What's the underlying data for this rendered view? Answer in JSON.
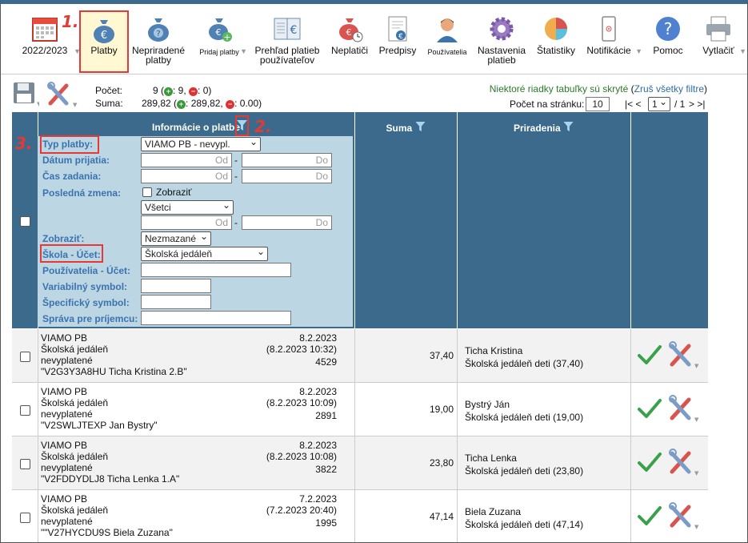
{
  "toolbar": {
    "year": "2022/2023",
    "items": [
      {
        "label": "Platby",
        "icon": "money-bag-euro-icon"
      },
      {
        "label": "Nepriradené platby",
        "icon": "money-bag-question-icon"
      },
      {
        "label": "Pridaj platby",
        "icon": "money-bag-add-icon"
      },
      {
        "label": "Prehľad platieb používateľov",
        "icon": "ledger-book-icon"
      },
      {
        "label": "Neplatiči",
        "icon": "money-bag-clock-icon"
      },
      {
        "label": "Predpisy",
        "icon": "document-euro-icon"
      },
      {
        "label": "Používatelia",
        "icon": "user-icon"
      },
      {
        "label": "Nastavenia platieb",
        "icon": "gear-icon"
      },
      {
        "label": "Štatistiky",
        "icon": "pie-chart-icon"
      },
      {
        "label": "Notifikácie",
        "icon": "phone-icon"
      },
      {
        "label": "Pomoc",
        "icon": "help-icon"
      },
      {
        "label": "Vytlačiť",
        "icon": "printer-icon"
      }
    ]
  },
  "annotations": [
    "1.",
    "2.",
    "3."
  ],
  "summary": {
    "count_label": "Počet:",
    "count_value": "9 (",
    "count_plus": ": 9,",
    "count_minus": ": 0)",
    "sum_label": "Suma:",
    "sum_value": "289,82 (",
    "sum_plus": ": 289,82,",
    "sum_minus": ": 0.00)"
  },
  "notice": {
    "text": "Niektoré riadky tabuľky sú skryté",
    "link": "Zruš všetky filtre"
  },
  "pagination": {
    "per_page_label": "Počet na stránku:",
    "per_page": "10",
    "first_prev": "|< <",
    "page": "1",
    "of": "/ 1",
    "next_last": "> >|"
  },
  "headers": {
    "info": "Informácie o platbe",
    "sum": "Suma",
    "assign": "Priradenia"
  },
  "filter": {
    "typ_platby_label": "Typ platby:",
    "typ_platby_value": "VIAMO PB - nevypl.",
    "datum_prijatia_label": "Dátum prijatia:",
    "cas_zadania_label": "Čas zadania:",
    "posledna_zmena_label": "Posledná zmena:",
    "zobrazit_checkbox_label": "Zobraziť",
    "vsetci_value": "Všetci",
    "zobrazit_label": "Zobraziť:",
    "zobrazit_value": "Nezmazané",
    "skola_ucet_label": "Škola - Účet:",
    "skola_ucet_value": "Školská jedáleň",
    "pouzivatelia_label": "Používatelia - Účet:",
    "variabilny_label": "Variabilný symbol:",
    "specificky_label": "Špecifický symbol:",
    "sprava_label": "Správa pre príjemcu:",
    "od_placeholder": "Od",
    "do_placeholder": "Do",
    "dash": "-"
  },
  "rows": [
    {
      "type": "VIAMO PB",
      "account": "Školská jedáleň",
      "status": "nevyplatené",
      "message": "\"V2G3Y3A8HU  Ticha Kristina  2.B\"",
      "date": "8.2.2023",
      "datetime": "(8.2.2023 10:32)",
      "vs": "4529",
      "sum": "37,40",
      "name": "Ticha Kristina",
      "assign": "Školská jedáleň deti (37,40)"
    },
    {
      "type": "VIAMO PB",
      "account": "Školská jedáleň",
      "status": "nevyplatené",
      "message": "\"V2SWLJTEXP Jan Bystry\"",
      "date": "8.2.2023",
      "datetime": "(8.2.2023 10:09)",
      "vs": "2891",
      "sum": "19,00",
      "name": "Bystrý Ján",
      "assign": "Školská jedáleň deti (19,00)"
    },
    {
      "type": "VIAMO PB",
      "account": "Školská jedáleň",
      "status": "nevyplatené",
      "message": "\"V2FDDYDLJ8 Ticha Lenka 1.A\"",
      "date": "8.2.2023",
      "datetime": "(8.2.2023 10:08)",
      "vs": "3822",
      "sum": "23,80",
      "name": "Ticha Lenka",
      "assign": "Školská jedáleň deti (23,80)"
    },
    {
      "type": "VIAMO PB",
      "account": "Školská jedáleň",
      "status": "nevyplatené",
      "message": "\"\"V27HYCDU9S Biela Zuzana\"",
      "date": "7.2.2023",
      "datetime": "(7.2.2023 20:40)",
      "vs": "1995",
      "sum": "47,14",
      "name": "Biela Zuzana",
      "assign": "Školská jedáleň deti (47,14)"
    }
  ],
  "colors": {
    "header": "#3b6a8c",
    "filter_bg": "#bcd6e3",
    "label_blue": "#3a73ae",
    "annotation_red": "#e53935",
    "active_bg": "#fff8d2"
  }
}
